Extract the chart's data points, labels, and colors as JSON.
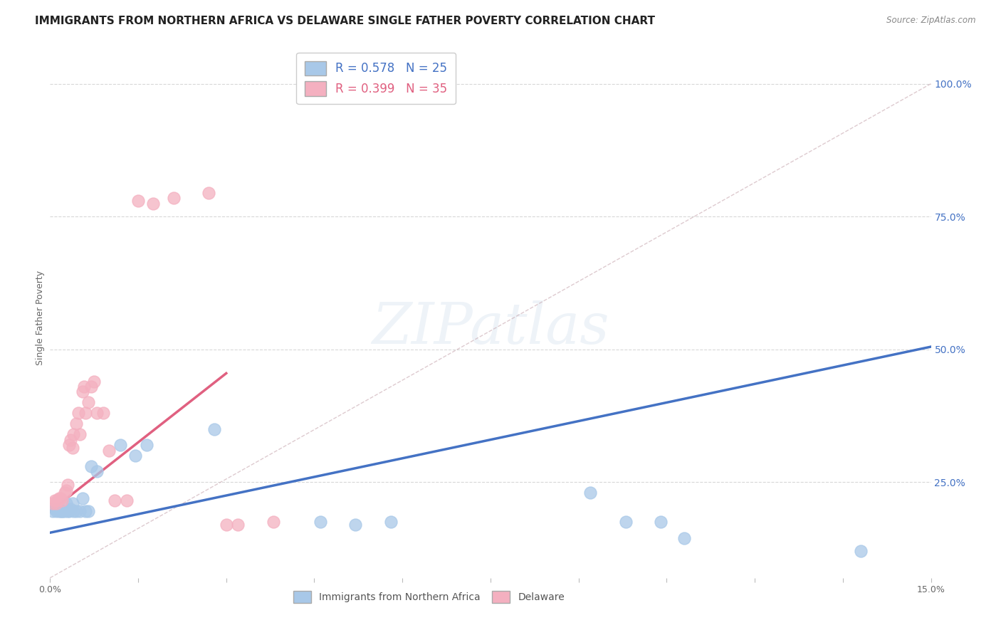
{
  "title": "IMMIGRANTS FROM NORTHERN AFRICA VS DELAWARE SINGLE FATHER POVERTY CORRELATION CHART",
  "source": "Source: ZipAtlas.com",
  "ylabel_left": "Single Father Poverty",
  "bottom_legend": [
    "Immigrants from Northern Africa",
    "Delaware"
  ],
  "blue_color": "#a8c8e8",
  "pink_color": "#f4b0c0",
  "blue_line_color": "#4472c4",
  "pink_line_color": "#e06080",
  "diagonal_color": "#c8a8b0",
  "background_color": "#ffffff",
  "grid_color": "#d8d8d8",
  "blue_dots": [
    [
      0.0005,
      0.195
    ],
    [
      0.0008,
      0.2
    ],
    [
      0.001,
      0.195
    ],
    [
      0.0012,
      0.2
    ],
    [
      0.0015,
      0.195
    ],
    [
      0.0018,
      0.195
    ],
    [
      0.002,
      0.195
    ],
    [
      0.0022,
      0.195
    ],
    [
      0.0025,
      0.195
    ],
    [
      0.0028,
      0.21
    ],
    [
      0.003,
      0.195
    ],
    [
      0.0032,
      0.195
    ],
    [
      0.0035,
      0.2
    ],
    [
      0.0038,
      0.21
    ],
    [
      0.004,
      0.195
    ],
    [
      0.0045,
      0.195
    ],
    [
      0.005,
      0.195
    ],
    [
      0.0055,
      0.22
    ],
    [
      0.006,
      0.195
    ],
    [
      0.0065,
      0.195
    ],
    [
      0.007,
      0.28
    ],
    [
      0.008,
      0.27
    ],
    [
      0.012,
      0.32
    ],
    [
      0.0145,
      0.3
    ],
    [
      0.0165,
      0.32
    ],
    [
      0.028,
      0.35
    ],
    [
      0.046,
      0.175
    ],
    [
      0.052,
      0.17
    ],
    [
      0.058,
      0.175
    ],
    [
      0.092,
      0.23
    ],
    [
      0.098,
      0.175
    ],
    [
      0.104,
      0.175
    ],
    [
      0.108,
      0.145
    ],
    [
      0.138,
      0.12
    ]
  ],
  "pink_dots": [
    [
      0.0005,
      0.21
    ],
    [
      0.0008,
      0.215
    ],
    [
      0.001,
      0.21
    ],
    [
      0.0012,
      0.215
    ],
    [
      0.0015,
      0.22
    ],
    [
      0.0018,
      0.22
    ],
    [
      0.002,
      0.215
    ],
    [
      0.0025,
      0.23
    ],
    [
      0.0028,
      0.235
    ],
    [
      0.003,
      0.245
    ],
    [
      0.0032,
      0.32
    ],
    [
      0.0035,
      0.33
    ],
    [
      0.0038,
      0.315
    ],
    [
      0.004,
      0.34
    ],
    [
      0.0045,
      0.36
    ],
    [
      0.0048,
      0.38
    ],
    [
      0.005,
      0.34
    ],
    [
      0.0055,
      0.42
    ],
    [
      0.0058,
      0.43
    ],
    [
      0.006,
      0.38
    ],
    [
      0.0065,
      0.4
    ],
    [
      0.007,
      0.43
    ],
    [
      0.0075,
      0.44
    ],
    [
      0.008,
      0.38
    ],
    [
      0.009,
      0.38
    ],
    [
      0.01,
      0.31
    ],
    [
      0.011,
      0.215
    ],
    [
      0.013,
      0.215
    ],
    [
      0.015,
      0.78
    ],
    [
      0.0175,
      0.775
    ],
    [
      0.021,
      0.785
    ],
    [
      0.027,
      0.795
    ],
    [
      0.03,
      0.17
    ],
    [
      0.032,
      0.17
    ],
    [
      0.038,
      0.175
    ]
  ],
  "xlim": [
    0.0,
    0.15
  ],
  "ylim": [
    0.07,
    1.05
  ],
  "title_fontsize": 11,
  "axis_fontsize": 9,
  "tick_fontsize": 9,
  "watermark": "ZIPatlas"
}
